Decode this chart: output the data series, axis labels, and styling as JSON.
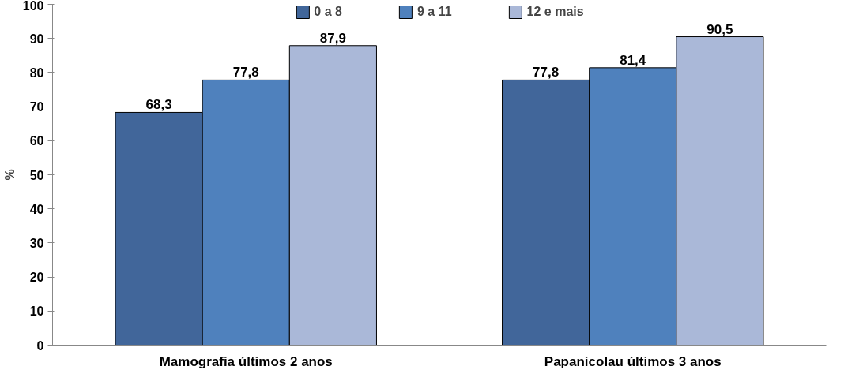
{
  "chart_data": {
    "type": "bar",
    "ylabel": "%",
    "categories": [
      "Mamografia últimos 2 anos",
      "Papanicolau últimos 3 anos"
    ],
    "series": [
      {
        "name": "0 a 8",
        "color": "#41669a",
        "values": [
          68.3,
          77.8
        ],
        "value_labels": [
          "68,3",
          "77,8"
        ]
      },
      {
        "name": "9 a 11",
        "color": "#4f81bd",
        "values": [
          77.8,
          81.4
        ],
        "value_labels": [
          "77,8",
          "81,4"
        ]
      },
      {
        "name": "12 e mais",
        "color": "#aab8d8",
        "values": [
          87.9,
          90.5
        ],
        "value_labels": [
          "87,9",
          "90,5"
        ]
      }
    ],
    "ylim": [
      0,
      100
    ],
    "yticks": [
      0,
      10,
      20,
      30,
      40,
      50,
      60,
      70,
      80,
      90,
      100
    ],
    "legend": "top"
  }
}
